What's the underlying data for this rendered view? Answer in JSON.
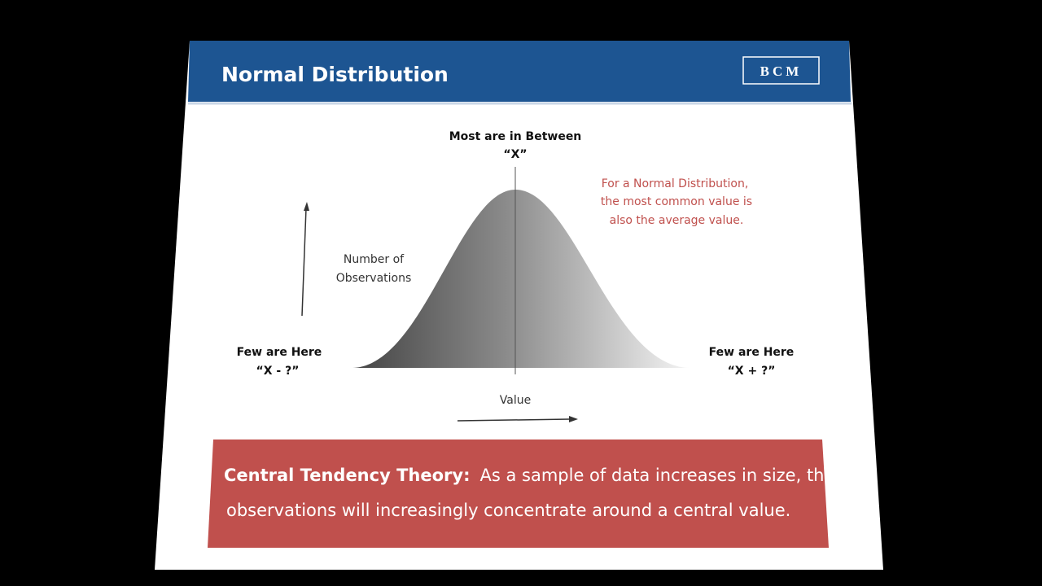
{
  "header": {
    "title": "Normal Distribution",
    "logo": "BCM"
  },
  "diagram": {
    "peak_label": {
      "line1": "Most are in Between",
      "line2": "“X”"
    },
    "left_label": {
      "line1": "Few are Here",
      "line2": "“X - ?”"
    },
    "right_label": {
      "line1": "Few are Here",
      "line2": "“X + ?”"
    },
    "y_axis_label": {
      "line1": "Number of",
      "line2": "Observations"
    },
    "x_axis_label": "Value",
    "note": [
      "For a Normal Distribution,",
      "the most common value is",
      "also the average value."
    ]
  },
  "callout": {
    "heading": "Central Tendency Theory:",
    "line1": "As a sample of data increases in size, the",
    "line2": "observations will increasingly concentrate around a central value."
  }
}
